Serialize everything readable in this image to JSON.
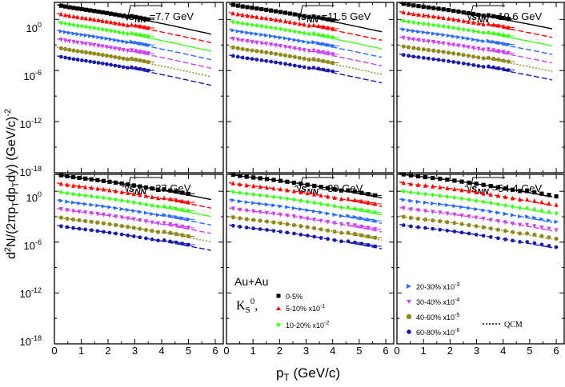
{
  "chart_data": {
    "type": "line",
    "ylabel_parts": {
      "a": "d",
      "b": "2",
      "c": "N/(2πp",
      "d": "T",
      "e": "dp",
      "f": "T",
      "g": "dy) (GeV/c)",
      "h": "-2"
    },
    "xlabel_parts": {
      "a": "p",
      "b": "T",
      "c": " (GeV/c)"
    },
    "x_ticks": [
      "0",
      "1",
      "2",
      "3",
      "4",
      "5",
      "6"
    ],
    "y_ticks": [
      {
        "base": "10",
        "exp": "0"
      },
      {
        "base": "10",
        "exp": "-6"
      },
      {
        "base": "10",
        "exp": "-12"
      },
      {
        "base": "10",
        "exp": "-18"
      }
    ],
    "xlim": [
      0,
      6.3
    ],
    "ylog_range": [
      -18,
      2
    ],
    "energy_prefix": "s",
    "energy_sub": "NN",
    "panels": [
      {
        "energy": "=7.7 GeV",
        "A": 1.8,
        "T": 0.52,
        "xmax": 3.5
      },
      {
        "energy": "=11.5 GeV",
        "A": 1.9,
        "T": 0.54,
        "xmax": 4.0
      },
      {
        "energy": "=19.6 GeV",
        "A": 2.0,
        "T": 0.57,
        "xmax": 4.2
      },
      {
        "energy": "=27 GeV",
        "A": 2.05,
        "T": 0.58,
        "xmax": 5.0
      },
      {
        "energy": "=39 GeV",
        "A": 2.1,
        "T": 0.6,
        "xmax": 5.6
      },
      {
        "energy": "=54.4 GeV",
        "A": 2.15,
        "T": 0.61,
        "xmax": 6.0
      }
    ],
    "series": [
      {
        "name": "0-5%",
        "scale_exp": 0,
        "color": "#000000",
        "marker": "square",
        "dash": "none"
      },
      {
        "name": "5-10% x10",
        "sup": "-1",
        "scale_exp": -1,
        "color": "#ff0000",
        "marker": "triangle-up",
        "dash": "7,3"
      },
      {
        "name": "10-20% x10",
        "sup": "-2",
        "scale_exp": -2,
        "color": "#44ff22",
        "marker": "diamond",
        "dash": "none"
      },
      {
        "name": "20-30% x10",
        "sup": "-3",
        "scale_exp": -3,
        "color": "#2a6bff",
        "marker": "triangle-right",
        "dash": "7,3"
      },
      {
        "name": "30-40% x10",
        "sup": "-4",
        "scale_exp": -4,
        "color": "#cc44ee",
        "marker": "triangle-down",
        "dash": "7,3"
      },
      {
        "name": "40-60% x10",
        "sup": "-5",
        "scale_exp": -5,
        "color": "#8f8a1c",
        "marker": "circle",
        "dash": "2,2"
      },
      {
        "name": "60-80% x10",
        "sup": "-6",
        "scale_exp": -6,
        "color": "#1a1aa8",
        "marker": "hexagon",
        "dash": "7,3"
      }
    ],
    "legend": {
      "system": "Au+Au",
      "particle": "K",
      "particle_sub": "S",
      "particle_sup": "0",
      "particle_comma": ",",
      "model": "QCM"
    }
  }
}
